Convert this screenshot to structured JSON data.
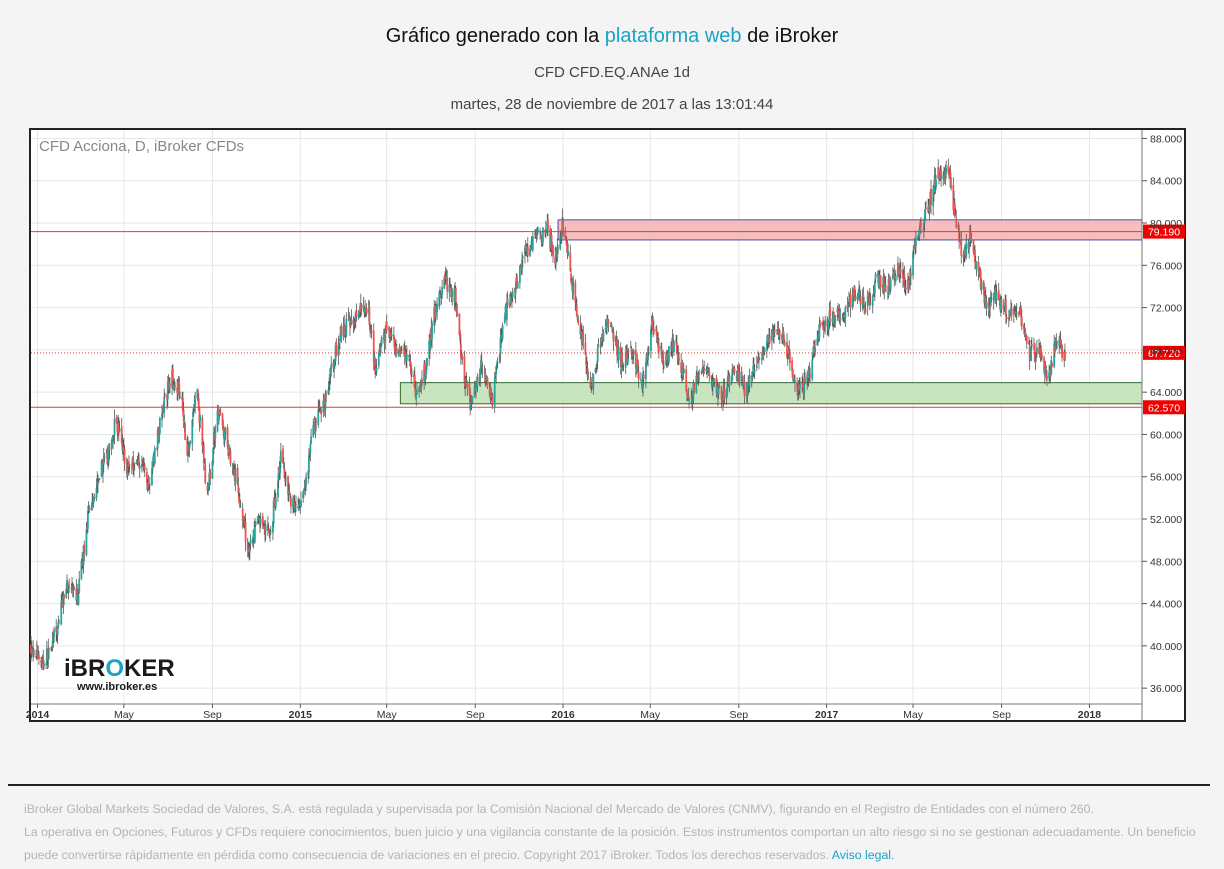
{
  "header": {
    "title_prefix": "Gráfico generado con la ",
    "title_link": "plataforma web",
    "title_suffix": " de iBroker",
    "subtitle": "CFD CFD.EQ.ANAe 1d",
    "datetime": "martes, 28 de noviembre de 2017 a las 13:01:44"
  },
  "logo": {
    "brand_start": "iBR",
    "brand_o": "O",
    "brand_end": "KER",
    "url": "www.ibroker.es"
  },
  "footer": {
    "line1": "iBroker Global Markets Sociedad de Valores, S.A. está regulada y supervisada por la Comisión Nacional del Mercado de Valores (CNMV), figurando en el Registro de Entidades con el número 260.",
    "line2": "La operativa en Opciones, Futuros y CFDs requiere conocimientos, buen juicio y una vigilancia constante de la posición. Estos instrumentos comportan un alto riesgo si no se gestionan adecuadamente. Un beneficio puede convertirse rápidamente en pérdida como consecuencia de variaciones en el precio. Copyright 2017 iBroker. Todos los derechos reservados.",
    "link": "Aviso legal."
  },
  "colors": {
    "up": "#26a69a",
    "down": "#ef5350",
    "wick": "#555555",
    "level_line": "#e53935",
    "red_zone": "#f4b3b3",
    "green_zone": "#bfe0b5",
    "accent": "#1aa3c9",
    "price_tag": "#f00000"
  },
  "chart_data": {
    "type": "candlestick",
    "title": "CFD Acciona, D, iBroker CFDs",
    "x_tick_labels": [
      "2014",
      "May",
      "Sep",
      "2015",
      "May",
      "Sep",
      "2016",
      "May",
      "Sep",
      "2017",
      "May",
      "Sep",
      "2018"
    ],
    "x_tick_dates": [
      "2014-01-01",
      "2014-05-01",
      "2014-09-01",
      "2015-01-01",
      "2015-05-01",
      "2015-09-01",
      "2016-01-01",
      "2016-05-01",
      "2016-09-01",
      "2017-01-01",
      "2017-05-01",
      "2017-09-01",
      "2018-01-01"
    ],
    "y_tick_labels": [
      "88.000",
      "84.000",
      "80.000",
      "76.000",
      "72.000",
      "68.000",
      "64.000",
      "60.000",
      "56.000",
      "52.000",
      "48.000",
      "44.000",
      "40.000",
      "36.000"
    ],
    "ylim": [
      34.5,
      88.8
    ],
    "xlim": [
      "2013-12-23",
      "2018-03-15"
    ],
    "grid": true,
    "price_path": [
      {
        "date": "2013-12-23",
        "price": 40.0
      },
      {
        "date": "2014-01-10",
        "price": 38.3
      },
      {
        "date": "2014-01-28",
        "price": 41.5
      },
      {
        "date": "2014-02-10",
        "price": 46.0
      },
      {
        "date": "2014-02-25",
        "price": 44.2
      },
      {
        "date": "2014-03-12",
        "price": 52.0
      },
      {
        "date": "2014-03-28",
        "price": 56.5
      },
      {
        "date": "2014-04-10",
        "price": 58.0
      },
      {
        "date": "2014-04-20",
        "price": 61.5
      },
      {
        "date": "2014-05-05",
        "price": 57.0
      },
      {
        "date": "2014-05-25",
        "price": 57.6
      },
      {
        "date": "2014-06-05",
        "price": 55.0
      },
      {
        "date": "2014-06-20",
        "price": 61.0
      },
      {
        "date": "2014-07-05",
        "price": 65.5
      },
      {
        "date": "2014-07-20",
        "price": 64.0
      },
      {
        "date": "2014-07-28",
        "price": 58.0
      },
      {
        "date": "2014-08-10",
        "price": 64.5
      },
      {
        "date": "2014-08-25",
        "price": 54.0
      },
      {
        "date": "2014-09-08",
        "price": 62.5
      },
      {
        "date": "2014-09-22",
        "price": 59.0
      },
      {
        "date": "2014-10-05",
        "price": 55.5
      },
      {
        "date": "2014-10-20",
        "price": 49.0
      },
      {
        "date": "2014-11-05",
        "price": 52.0
      },
      {
        "date": "2014-11-20",
        "price": 50.5
      },
      {
        "date": "2014-12-05",
        "price": 58.0
      },
      {
        "date": "2014-12-20",
        "price": 53.5
      },
      {
        "date": "2015-01-03",
        "price": 53.0
      },
      {
        "date": "2015-01-20",
        "price": 61.0
      },
      {
        "date": "2015-02-05",
        "price": 63.5
      },
      {
        "date": "2015-02-25",
        "price": 69.5
      },
      {
        "date": "2015-03-15",
        "price": 71.0
      },
      {
        "date": "2015-04-05",
        "price": 72.0
      },
      {
        "date": "2015-04-15",
        "price": 66.5
      },
      {
        "date": "2015-05-01",
        "price": 70.0
      },
      {
        "date": "2015-05-15",
        "price": 67.5
      },
      {
        "date": "2015-06-01",
        "price": 67.0
      },
      {
        "date": "2015-06-12",
        "price": 63.5
      },
      {
        "date": "2015-06-25",
        "price": 66.5
      },
      {
        "date": "2015-07-05",
        "price": 71.0
      },
      {
        "date": "2015-07-20",
        "price": 74.5
      },
      {
        "date": "2015-08-05",
        "price": 73.0
      },
      {
        "date": "2015-08-15",
        "price": 66.0
      },
      {
        "date": "2015-08-25",
        "price": 63.0
      },
      {
        "date": "2015-09-10",
        "price": 66.5
      },
      {
        "date": "2015-09-25",
        "price": 63.0
      },
      {
        "date": "2015-10-10",
        "price": 71.0
      },
      {
        "date": "2015-10-25",
        "price": 73.5
      },
      {
        "date": "2015-11-10",
        "price": 77.5
      },
      {
        "date": "2015-11-25",
        "price": 78.5
      },
      {
        "date": "2015-12-10",
        "price": 79.5
      },
      {
        "date": "2015-12-20",
        "price": 76.5
      },
      {
        "date": "2015-12-31",
        "price": 80.0
      },
      {
        "date": "2016-01-12",
        "price": 75.0
      },
      {
        "date": "2016-01-25",
        "price": 70.0
      },
      {
        "date": "2016-02-10",
        "price": 64.0
      },
      {
        "date": "2016-02-20",
        "price": 68.5
      },
      {
        "date": "2016-03-05",
        "price": 71.0
      },
      {
        "date": "2016-03-20",
        "price": 67.0
      },
      {
        "date": "2016-04-05",
        "price": 68.0
      },
      {
        "date": "2016-04-20",
        "price": 65.0
      },
      {
        "date": "2016-05-05",
        "price": 70.5
      },
      {
        "date": "2016-05-20",
        "price": 66.5
      },
      {
        "date": "2016-06-05",
        "price": 69.0
      },
      {
        "date": "2016-06-25",
        "price": 63.0
      },
      {
        "date": "2016-07-10",
        "price": 66.5
      },
      {
        "date": "2016-07-25",
        "price": 65.0
      },
      {
        "date": "2016-08-10",
        "price": 63.5
      },
      {
        "date": "2016-08-25",
        "price": 66.5
      },
      {
        "date": "2016-09-10",
        "price": 64.0
      },
      {
        "date": "2016-09-25",
        "price": 66.5
      },
      {
        "date": "2016-10-10",
        "price": 68.5
      },
      {
        "date": "2016-10-25",
        "price": 70.0
      },
      {
        "date": "2016-11-05",
        "price": 68.5
      },
      {
        "date": "2016-11-20",
        "price": 64.0
      },
      {
        "date": "2016-12-05",
        "price": 65.0
      },
      {
        "date": "2016-12-20",
        "price": 69.5
      },
      {
        "date": "2017-01-05",
        "price": 71.0
      },
      {
        "date": "2017-01-25",
        "price": 71.5
      },
      {
        "date": "2017-02-10",
        "price": 73.5
      },
      {
        "date": "2017-02-25",
        "price": 72.0
      },
      {
        "date": "2017-03-10",
        "price": 74.5
      },
      {
        "date": "2017-03-25",
        "price": 74.0
      },
      {
        "date": "2017-04-10",
        "price": 75.5
      },
      {
        "date": "2017-04-25",
        "price": 74.0
      },
      {
        "date": "2017-05-05",
        "price": 78.5
      },
      {
        "date": "2017-05-20",
        "price": 81.0
      },
      {
        "date": "2017-06-05",
        "price": 85.0
      },
      {
        "date": "2017-06-20",
        "price": 84.5
      },
      {
        "date": "2017-06-30",
        "price": 80.0
      },
      {
        "date": "2017-07-10",
        "price": 76.5
      },
      {
        "date": "2017-07-20",
        "price": 79.0
      },
      {
        "date": "2017-07-30",
        "price": 75.5
      },
      {
        "date": "2017-08-10",
        "price": 72.0
      },
      {
        "date": "2017-08-25",
        "price": 73.0
      },
      {
        "date": "2017-09-10",
        "price": 71.5
      },
      {
        "date": "2017-09-25",
        "price": 72.0
      },
      {
        "date": "2017-10-10",
        "price": 67.5
      },
      {
        "date": "2017-10-25",
        "price": 68.0
      },
      {
        "date": "2017-11-05",
        "price": 65.0
      },
      {
        "date": "2017-11-15",
        "price": 68.5
      },
      {
        "date": "2017-11-28",
        "price": 67.72
      }
    ],
    "horizontal_levels": [
      {
        "price": 79.19,
        "label": "79.190",
        "style": "solid"
      },
      {
        "price": 67.72,
        "label": "67.720",
        "style": "dotted"
      },
      {
        "price": 62.57,
        "label": "62.570",
        "style": "solid"
      }
    ],
    "zones": [
      {
        "kind": "resistance",
        "start": "2015-12-25",
        "end": "2018-03-15",
        "from": 78.4,
        "to": 80.3
      },
      {
        "kind": "support",
        "start": "2015-05-20",
        "end": "2018-03-15",
        "from": 62.9,
        "to": 64.9
      }
    ]
  }
}
